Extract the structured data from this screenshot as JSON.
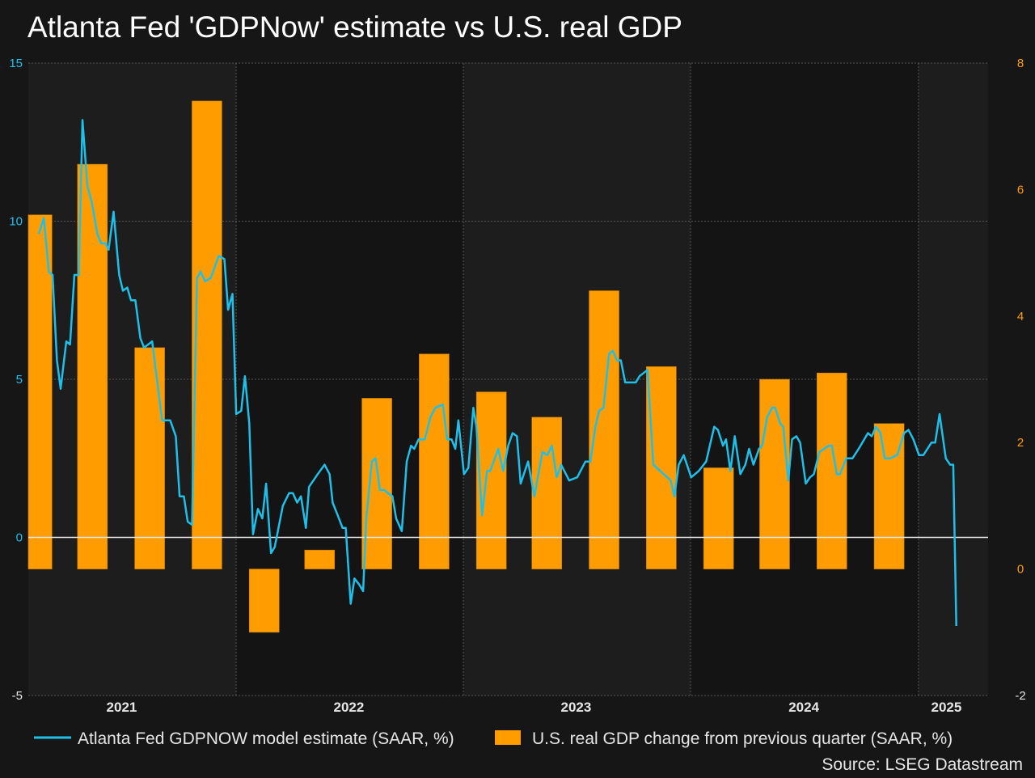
{
  "chart_data": {
    "type": "bar+line",
    "title": "Atlanta Fed 'GDPNow' estimate vs U.S. real GDP",
    "source": "Source: LSEG Datastream",
    "colors": {
      "line": "#1ec0ea",
      "bar": "#ff9d00",
      "left_axis": "#1ec0ea",
      "right_axis": "#ff9d00",
      "background": "#161616"
    },
    "grid": true,
    "legend_position": "bottom",
    "xlim": [
      "2021-02-01",
      "2025-04-23"
    ],
    "x_ticks": [
      {
        "label": "2021",
        "date": "2021-07-01"
      },
      {
        "label": "2022",
        "date": "2022-07-01"
      },
      {
        "label": "2023",
        "date": "2023-07-01"
      },
      {
        "label": "2024",
        "date": "2024-07-01"
      },
      {
        "label": "2025",
        "date": "2025-02-15"
      }
    ],
    "year_boundaries": [
      "2022-01-01",
      "2023-01-01",
      "2024-01-01",
      "2025-01-01"
    ],
    "left_axis": {
      "ylim": [
        -5,
        15
      ],
      "ticks": [
        "15",
        "10",
        "5",
        "0",
        "-5"
      ]
    },
    "right_axis": {
      "ylim": [
        -2,
        8
      ],
      "ticks": [
        "8",
        "6",
        "4",
        "2",
        "0",
        "-2"
      ]
    },
    "series": [
      {
        "name": "Atlanta Fed GDPNOW model estimate (SAAR, %)",
        "type": "line",
        "axis": "left",
        "points": [
          [
            "2021-02-18",
            9.6
          ],
          [
            "2021-02-26",
            10.1
          ],
          [
            "2021-03-06",
            8.4
          ],
          [
            "2021-03-12",
            8.3
          ],
          [
            "2021-03-19",
            5.6
          ],
          [
            "2021-03-25",
            4.7
          ],
          [
            "2021-04-03",
            6.2
          ],
          [
            "2021-04-09",
            6.1
          ],
          [
            "2021-04-16",
            8.3
          ],
          [
            "2021-04-23",
            8.3
          ],
          [
            "2021-04-29",
            13.2
          ],
          [
            "2021-05-07",
            11.1
          ],
          [
            "2021-05-14",
            10.6
          ],
          [
            "2021-05-23",
            9.6
          ],
          [
            "2021-05-29",
            9.3
          ],
          [
            "2021-06-05",
            9.3
          ],
          [
            "2021-06-10",
            9.1
          ],
          [
            "2021-06-18",
            10.3
          ],
          [
            "2021-06-27",
            8.3
          ],
          [
            "2021-07-03",
            7.8
          ],
          [
            "2021-07-10",
            7.9
          ],
          [
            "2021-07-16",
            7.5
          ],
          [
            "2021-07-23",
            7.5
          ],
          [
            "2021-07-31",
            6.3
          ],
          [
            "2021-08-06",
            6.0
          ],
          [
            "2021-08-19",
            6.2
          ],
          [
            "2021-09-04",
            3.7
          ],
          [
            "2021-09-17",
            3.7
          ],
          [
            "2021-09-26",
            3.2
          ],
          [
            "2021-10-02",
            1.3
          ],
          [
            "2021-10-09",
            1.3
          ],
          [
            "2021-10-15",
            0.5
          ],
          [
            "2021-10-22",
            0.4
          ],
          [
            "2021-10-30",
            8.2
          ],
          [
            "2021-11-05",
            8.4
          ],
          [
            "2021-11-12",
            8.1
          ],
          [
            "2021-11-21",
            8.2
          ],
          [
            "2021-12-04",
            8.9
          ],
          [
            "2021-12-13",
            8.8
          ],
          [
            "2021-12-19",
            7.2
          ],
          [
            "2021-12-26",
            7.7
          ],
          [
            "2022-01-01",
            3.9
          ],
          [
            "2022-01-09",
            4.0
          ],
          [
            "2022-01-15",
            5.1
          ],
          [
            "2022-01-22",
            3.6
          ],
          [
            "2022-01-28",
            0.1
          ],
          [
            "2022-02-05",
            0.9
          ],
          [
            "2022-02-12",
            0.6
          ],
          [
            "2022-02-18",
            1.7
          ],
          [
            "2022-02-26",
            -0.5
          ],
          [
            "2022-03-04",
            -0.3
          ],
          [
            "2022-03-17",
            1.0
          ],
          [
            "2022-03-27",
            1.4
          ],
          [
            "2022-04-02",
            1.4
          ],
          [
            "2022-04-09",
            1.1
          ],
          [
            "2022-04-15",
            1.3
          ],
          [
            "2022-04-23",
            0.3
          ],
          [
            "2022-04-28",
            1.6
          ],
          [
            "2022-05-05",
            1.8
          ],
          [
            "2022-05-12",
            2.0
          ],
          [
            "2022-05-23",
            2.3
          ],
          [
            "2022-05-31",
            2.0
          ],
          [
            "2022-06-05",
            1.1
          ],
          [
            "2022-06-13",
            0.7
          ],
          [
            "2022-06-21",
            0.3
          ],
          [
            "2022-06-26",
            0.3
          ],
          [
            "2022-07-04",
            -2.1
          ],
          [
            "2022-07-10",
            -1.3
          ],
          [
            "2022-07-18",
            -1.5
          ],
          [
            "2022-07-24",
            -1.7
          ],
          [
            "2022-07-29",
            0.6
          ],
          [
            "2022-08-07",
            2.4
          ],
          [
            "2022-08-13",
            2.5
          ],
          [
            "2022-08-20",
            1.5
          ],
          [
            "2022-08-27",
            1.5
          ],
          [
            "2022-09-02",
            1.4
          ],
          [
            "2022-09-09",
            1.3
          ],
          [
            "2022-09-15",
            0.6
          ],
          [
            "2022-09-24",
            0.2
          ],
          [
            "2022-10-02",
            2.4
          ],
          [
            "2022-10-09",
            2.9
          ],
          [
            "2022-10-14",
            2.8
          ],
          [
            "2022-10-21",
            3.1
          ],
          [
            "2022-10-31",
            3.1
          ],
          [
            "2022-11-09",
            3.8
          ],
          [
            "2022-11-17",
            4.1
          ],
          [
            "2022-11-29",
            4.2
          ],
          [
            "2022-12-06",
            3.1
          ],
          [
            "2022-12-13",
            3.1
          ],
          [
            "2022-12-19",
            2.8
          ],
          [
            "2022-12-24",
            3.7
          ],
          [
            "2023-01-02",
            2.0
          ],
          [
            "2023-01-09",
            2.2
          ],
          [
            "2023-01-17",
            4.1
          ],
          [
            "2023-01-22",
            3.5
          ],
          [
            "2023-01-31",
            0.7
          ],
          [
            "2023-02-08",
            2.1
          ],
          [
            "2023-02-13",
            2.1
          ],
          [
            "2023-02-26",
            2.8
          ],
          [
            "2023-03-06",
            2.1
          ],
          [
            "2023-03-14",
            2.9
          ],
          [
            "2023-03-21",
            3.3
          ],
          [
            "2023-03-28",
            3.2
          ],
          [
            "2023-04-03",
            1.7
          ],
          [
            "2023-04-15",
            2.4
          ],
          [
            "2023-04-25",
            1.3
          ],
          [
            "2023-05-08",
            2.7
          ],
          [
            "2023-05-16",
            2.6
          ],
          [
            "2023-05-23",
            2.9
          ],
          [
            "2023-05-31",
            1.9
          ],
          [
            "2023-06-07",
            2.3
          ],
          [
            "2023-06-20",
            1.8
          ],
          [
            "2023-07-03",
            1.9
          ],
          [
            "2023-07-16",
            2.4
          ],
          [
            "2023-07-24",
            2.4
          ],
          [
            "2023-08-01",
            3.5
          ],
          [
            "2023-08-07",
            4.0
          ],
          [
            "2023-08-14",
            4.1
          ],
          [
            "2023-08-23",
            5.8
          ],
          [
            "2023-08-29",
            5.9
          ],
          [
            "2023-09-05",
            5.6
          ],
          [
            "2023-09-11",
            5.6
          ],
          [
            "2023-09-18",
            4.9
          ],
          [
            "2023-09-28",
            4.9
          ],
          [
            "2023-10-05",
            4.9
          ],
          [
            "2023-10-11",
            5.1
          ],
          [
            "2023-10-24",
            5.3
          ],
          [
            "2023-11-02",
            2.3
          ],
          [
            "2023-11-30",
            1.8
          ],
          [
            "2023-12-06",
            1.3
          ],
          [
            "2023-12-13",
            2.3
          ],
          [
            "2023-12-21",
            2.6
          ],
          [
            "2024-01-02",
            1.9
          ],
          [
            "2024-01-14",
            2.1
          ],
          [
            "2024-01-26",
            2.4
          ],
          [
            "2024-02-08",
            3.5
          ],
          [
            "2024-02-14",
            3.4
          ],
          [
            "2024-02-22",
            2.9
          ],
          [
            "2024-02-27",
            3.1
          ],
          [
            "2024-03-05",
            2.1
          ],
          [
            "2024-03-12",
            3.2
          ],
          [
            "2024-03-21",
            2.0
          ],
          [
            "2024-03-29",
            2.3
          ],
          [
            "2024-04-04",
            2.8
          ],
          [
            "2024-04-11",
            2.3
          ],
          [
            "2024-04-20",
            2.8
          ],
          [
            "2024-04-25",
            2.9
          ],
          [
            "2024-05-03",
            3.8
          ],
          [
            "2024-05-11",
            4.1
          ],
          [
            "2024-05-16",
            4.1
          ],
          [
            "2024-05-24",
            3.6
          ],
          [
            "2024-05-29",
            3.5
          ],
          [
            "2024-06-06",
            1.8
          ],
          [
            "2024-06-12",
            3.1
          ],
          [
            "2024-06-19",
            3.2
          ],
          [
            "2024-06-25",
            3.0
          ],
          [
            "2024-07-04",
            1.7
          ],
          [
            "2024-07-11",
            1.9
          ],
          [
            "2024-07-17",
            2.0
          ],
          [
            "2024-07-26",
            2.7
          ],
          [
            "2024-08-10",
            2.9
          ],
          [
            "2024-08-15",
            2.9
          ],
          [
            "2024-08-23",
            2.0
          ],
          [
            "2024-08-28",
            2.0
          ],
          [
            "2024-09-07",
            2.5
          ],
          [
            "2024-09-17",
            2.5
          ],
          [
            "2024-09-27",
            2.8
          ],
          [
            "2024-10-12",
            3.3
          ],
          [
            "2024-10-18",
            3.2
          ],
          [
            "2024-10-25",
            3.5
          ],
          [
            "2024-11-01",
            3.3
          ],
          [
            "2024-11-08",
            2.5
          ],
          [
            "2024-11-17",
            2.5
          ],
          [
            "2024-11-28",
            2.6
          ],
          [
            "2024-12-09",
            3.3
          ],
          [
            "2024-12-16",
            3.4
          ],
          [
            "2024-12-24",
            3.1
          ],
          [
            "2025-01-02",
            2.6
          ],
          [
            "2025-01-09",
            2.6
          ],
          [
            "2025-01-22",
            3.0
          ],
          [
            "2025-01-28",
            3.0
          ],
          [
            "2025-02-04",
            3.9
          ],
          [
            "2025-02-14",
            2.5
          ],
          [
            "2025-02-21",
            2.3
          ],
          [
            "2025-02-26",
            2.3
          ],
          [
            "2025-03-03",
            -2.8
          ]
        ]
      },
      {
        "name": "U.S. real GDP change from previous quarter (SAAR, %)",
        "type": "bar",
        "axis": "right",
        "categories": [
          "2021-Q1",
          "2021-Q2",
          "2021-Q3",
          "2021-Q4",
          "2022-Q1",
          "2022-Q2",
          "2022-Q3",
          "2022-Q4",
          "2023-Q1",
          "2023-Q2",
          "2023-Q3",
          "2023-Q4",
          "2024-Q1",
          "2024-Q2",
          "2024-Q3",
          "2024-Q4"
        ],
        "values": [
          5.6,
          6.4,
          3.5,
          7.4,
          -1.0,
          0.3,
          2.7,
          3.4,
          2.8,
          2.4,
          4.4,
          3.2,
          1.6,
          3.0,
          3.1,
          2.3
        ]
      }
    ]
  }
}
